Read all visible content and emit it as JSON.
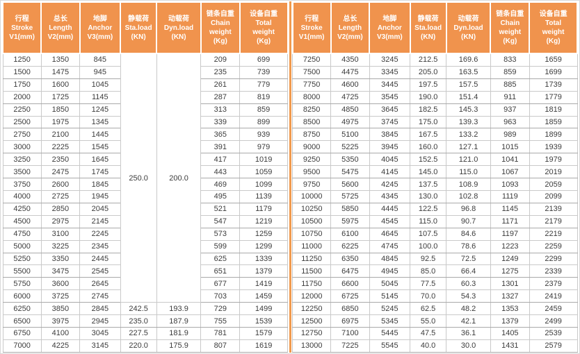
{
  "accent_colors": {
    "header_orange": "#f0934d",
    "divider_orange": "#f09a4e",
    "grid_gray": "#c9c9c9",
    "text_dark": "#3b3b3b",
    "header_text": "#ffffff"
  },
  "columns": [
    {
      "key": "stroke",
      "lines": [
        "行程",
        "Stroke",
        "V1(mm)"
      ]
    },
    {
      "key": "length",
      "lines": [
        "总长",
        "Length",
        "V2(mm)"
      ]
    },
    {
      "key": "anchor",
      "lines": [
        "地脚",
        "Anchor",
        "V3(mm)"
      ]
    },
    {
      "key": "sta-load",
      "lines": [
        "静载荷",
        "Sta.load",
        "(KN)"
      ]
    },
    {
      "key": "dyn-load",
      "lines": [
        "动载荷",
        "Dyn.load",
        "(KN)"
      ]
    },
    {
      "key": "chain-weight",
      "lines": [
        "链条自重",
        "Chain",
        "weight",
        "(Kg)"
      ]
    },
    {
      "key": "total-weight",
      "lines": [
        "设备自重",
        "Total",
        "weight",
        "(Kg)"
      ]
    }
  ],
  "tables": [
    {
      "name": "left",
      "merges": [
        {
          "row": 0,
          "col": 3,
          "rowspan": 20,
          "value": "250.0"
        },
        {
          "row": 0,
          "col": 4,
          "rowspan": 20,
          "value": "200.0"
        }
      ],
      "rows": [
        [
          "1250",
          "1350",
          "845",
          null,
          null,
          "209",
          "699"
        ],
        [
          "1500",
          "1475",
          "945",
          null,
          null,
          "235",
          "739"
        ],
        [
          "1750",
          "1600",
          "1045",
          null,
          null,
          "261",
          "779"
        ],
        [
          "2000",
          "1725",
          "1145",
          null,
          null,
          "287",
          "819"
        ],
        [
          "2250",
          "1850",
          "1245",
          null,
          null,
          "313",
          "859"
        ],
        [
          "2500",
          "1975",
          "1345",
          null,
          null,
          "339",
          "899"
        ],
        [
          "2750",
          "2100",
          "1445",
          null,
          null,
          "365",
          "939"
        ],
        [
          "3000",
          "2225",
          "1545",
          null,
          null,
          "391",
          "979"
        ],
        [
          "3250",
          "2350",
          "1645",
          null,
          null,
          "417",
          "1019"
        ],
        [
          "3500",
          "2475",
          "1745",
          null,
          null,
          "443",
          "1059"
        ],
        [
          "3750",
          "2600",
          "1845",
          null,
          null,
          "469",
          "1099"
        ],
        [
          "4000",
          "2725",
          "1945",
          null,
          null,
          "495",
          "1139"
        ],
        [
          "4250",
          "2850",
          "2045",
          null,
          null,
          "521",
          "1179"
        ],
        [
          "4500",
          "2975",
          "2145",
          null,
          null,
          "547",
          "1219"
        ],
        [
          "4750",
          "3100",
          "2245",
          null,
          null,
          "573",
          "1259"
        ],
        [
          "5000",
          "3225",
          "2345",
          null,
          null,
          "599",
          "1299"
        ],
        [
          "5250",
          "3350",
          "2445",
          null,
          null,
          "625",
          "1339"
        ],
        [
          "5500",
          "3475",
          "2545",
          null,
          null,
          "651",
          "1379"
        ],
        [
          "5750",
          "3600",
          "2645",
          null,
          null,
          "677",
          "1419"
        ],
        [
          "6000",
          "3725",
          "2745",
          null,
          null,
          "703",
          "1459"
        ],
        [
          "6250",
          "3850",
          "2845",
          "242.5",
          "193.9",
          "729",
          "1499"
        ],
        [
          "6500",
          "3975",
          "2945",
          "235.0",
          "187.9",
          "755",
          "1539"
        ],
        [
          "6750",
          "4100",
          "3045",
          "227.5",
          "181.9",
          "781",
          "1579"
        ],
        [
          "7000",
          "4225",
          "3145",
          "220.0",
          "175.9",
          "807",
          "1619"
        ]
      ]
    },
    {
      "name": "right",
      "merges": [],
      "rows": [
        [
          "7250",
          "4350",
          "3245",
          "212.5",
          "169.6",
          "833",
          "1659"
        ],
        [
          "7500",
          "4475",
          "3345",
          "205.0",
          "163.5",
          "859",
          "1699"
        ],
        [
          "7750",
          "4600",
          "3445",
          "197.5",
          "157.5",
          "885",
          "1739"
        ],
        [
          "8000",
          "4725",
          "3545",
          "190.0",
          "151.4",
          "911",
          "1779"
        ],
        [
          "8250",
          "4850",
          "3645",
          "182.5",
          "145.3",
          "937",
          "1819"
        ],
        [
          "8500",
          "4975",
          "3745",
          "175.0",
          "139.3",
          "963",
          "1859"
        ],
        [
          "8750",
          "5100",
          "3845",
          "167.5",
          "133.2",
          "989",
          "1899"
        ],
        [
          "9000",
          "5225",
          "3945",
          "160.0",
          "127.1",
          "1015",
          "1939"
        ],
        [
          "9250",
          "5350",
          "4045",
          "152.5",
          "121.0",
          "1041",
          "1979"
        ],
        [
          "9500",
          "5475",
          "4145",
          "145.0",
          "115.0",
          "1067",
          "2019"
        ],
        [
          "9750",
          "5600",
          "4245",
          "137.5",
          "108.9",
          "1093",
          "2059"
        ],
        [
          "10000",
          "5725",
          "4345",
          "130.0",
          "102.8",
          "1119",
          "2099"
        ],
        [
          "10250",
          "5850",
          "4445",
          "122.5",
          "96.8",
          "1145",
          "2139"
        ],
        [
          "10500",
          "5975",
          "4545",
          "115.0",
          "90.7",
          "1171",
          "2179"
        ],
        [
          "10750",
          "6100",
          "4645",
          "107.5",
          "84.6",
          "1197",
          "2219"
        ],
        [
          "11000",
          "6225",
          "4745",
          "100.0",
          "78.6",
          "1223",
          "2259"
        ],
        [
          "11250",
          "6350",
          "4845",
          "92.5",
          "72.5",
          "1249",
          "2299"
        ],
        [
          "11500",
          "6475",
          "4945",
          "85.0",
          "66.4",
          "1275",
          "2339"
        ],
        [
          "11750",
          "6600",
          "5045",
          "77.5",
          "60.3",
          "1301",
          "2379"
        ],
        [
          "12000",
          "6725",
          "5145",
          "70.0",
          "54.3",
          "1327",
          "2419"
        ],
        [
          "12250",
          "6850",
          "5245",
          "62.5",
          "48.2",
          "1353",
          "2459"
        ],
        [
          "12500",
          "6975",
          "5345",
          "55.0",
          "42.1",
          "1379",
          "2499"
        ],
        [
          "12750",
          "7100",
          "5445",
          "47.5",
          "36.1",
          "1405",
          "2539"
        ],
        [
          "13000",
          "7225",
          "5545",
          "40.0",
          "30.0",
          "1431",
          "2579"
        ]
      ]
    }
  ]
}
